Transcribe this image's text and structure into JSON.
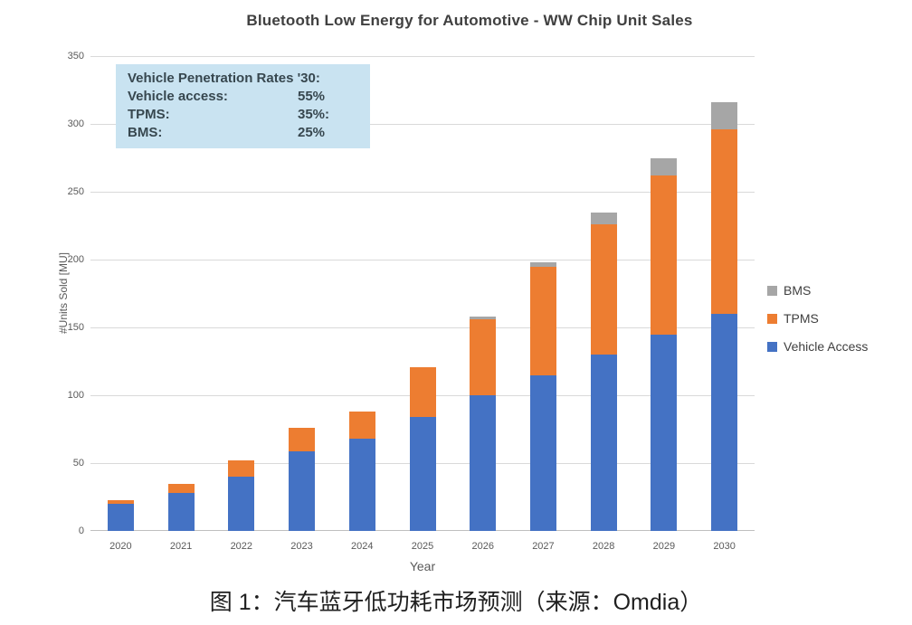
{
  "page": {
    "caption": "图 1：汽车蓝牙低功耗市场预测（来源：Omdia）"
  },
  "chart": {
    "annotation": {
      "bg_color": "#c9e3f1",
      "title": "Vehicle Penetration Rates '30:",
      "rows": [
        {
          "label": "Vehicle access:",
          "value": "55%"
        },
        {
          "label": "TPMS:",
          "value": "35%:"
        },
        {
          "label": "BMS:",
          "value": "25%"
        }
      ]
    }
  },
  "chart_data": {
    "type": "bar",
    "stacked": true,
    "title": "Bluetooth Low Energy for Automotive - WW Chip Unit Sales",
    "xlabel": "Year",
    "ylabel": "#Units Sold [MU]",
    "categories": [
      "2020",
      "2021",
      "2022",
      "2023",
      "2024",
      "2025",
      "2026",
      "2027",
      "2028",
      "2029",
      "2030"
    ],
    "series": [
      {
        "name": "Vehicle Access",
        "color": "#4472c4",
        "values": [
          20,
          28,
          40,
          59,
          68,
          84,
          100,
          115,
          130,
          145,
          160
        ]
      },
      {
        "name": "TPMS",
        "color": "#ed7d31",
        "values": [
          3,
          7,
          12,
          17,
          20,
          37,
          56,
          80,
          96,
          117,
          136
        ]
      },
      {
        "name": "BMS",
        "color": "#a6a6a6",
        "values": [
          0,
          0,
          0,
          0,
          0,
          0,
          2,
          3,
          9,
          13,
          20
        ]
      }
    ],
    "totals": [
      23,
      35,
      52,
      76,
      88,
      121,
      158,
      198,
      235,
      275,
      316
    ],
    "ylim": [
      0,
      350
    ],
    "ytick_step": 50,
    "grid": true,
    "legend_position": "right",
    "legend_order": [
      "BMS",
      "TPMS",
      "Vehicle Access"
    ]
  }
}
